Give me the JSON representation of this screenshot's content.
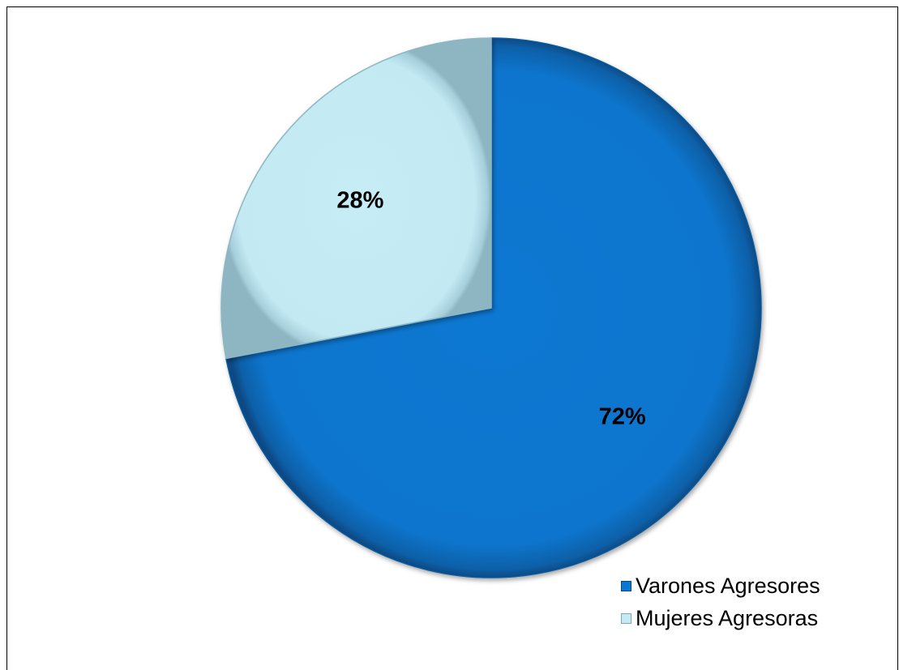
{
  "chart_data": {
    "type": "pie",
    "title": "",
    "slices": [
      {
        "name": "Varones Agresores",
        "value": 72,
        "label": "72%",
        "color": "#0a77d0"
      },
      {
        "name": "Mujeres Agresoras",
        "value": 28,
        "label": "28%",
        "color": "#c4eaf4"
      }
    ],
    "legend_position": "bottom-right",
    "start_angle_deg": 0,
    "direction": "clockwise"
  },
  "legend": {
    "items": [
      {
        "label": "Varones Agresores",
        "color": "#0a77d0"
      },
      {
        "label": "Mujeres Agresoras",
        "color": "#c4eaf4"
      }
    ]
  }
}
